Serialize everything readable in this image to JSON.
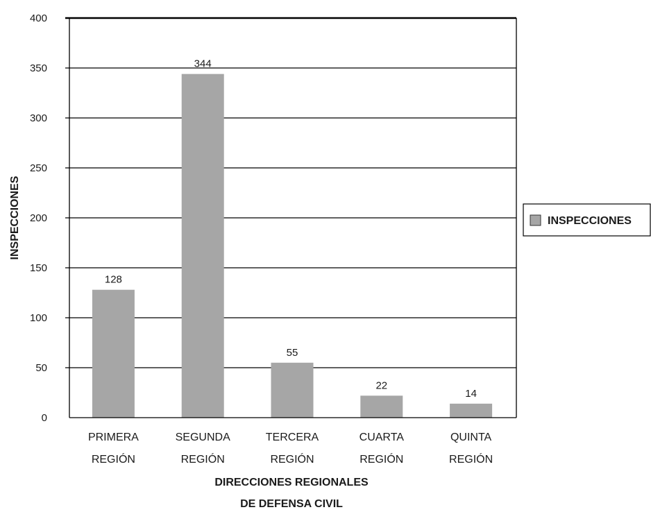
{
  "chart_data": {
    "type": "bar",
    "categories": [
      [
        "PRIMERA",
        "REGIÓN"
      ],
      [
        "SEGUNDA",
        "REGIÓN"
      ],
      [
        "TERCERA",
        "REGIÓN"
      ],
      [
        "CUARTA",
        "REGIÓN"
      ],
      [
        "QUINTA",
        "REGIÓN"
      ]
    ],
    "series": [
      {
        "name": "INSPECCIONES",
        "values": [
          128,
          344,
          55,
          22,
          14
        ]
      }
    ],
    "xlabel": [
      "DIRECCIONES REGIONALES",
      "DE DEFENSA CIVIL"
    ],
    "ylabel": "INSPECCIONES",
    "ylim": [
      0,
      400
    ],
    "yticks": [
      0,
      50,
      100,
      150,
      200,
      250,
      300,
      350,
      400
    ],
    "grid": "horizontal",
    "legend_position": "right",
    "colors": {
      "bar": "#a6a6a6",
      "grid": "#000000",
      "text": "#1a1a1a"
    }
  }
}
